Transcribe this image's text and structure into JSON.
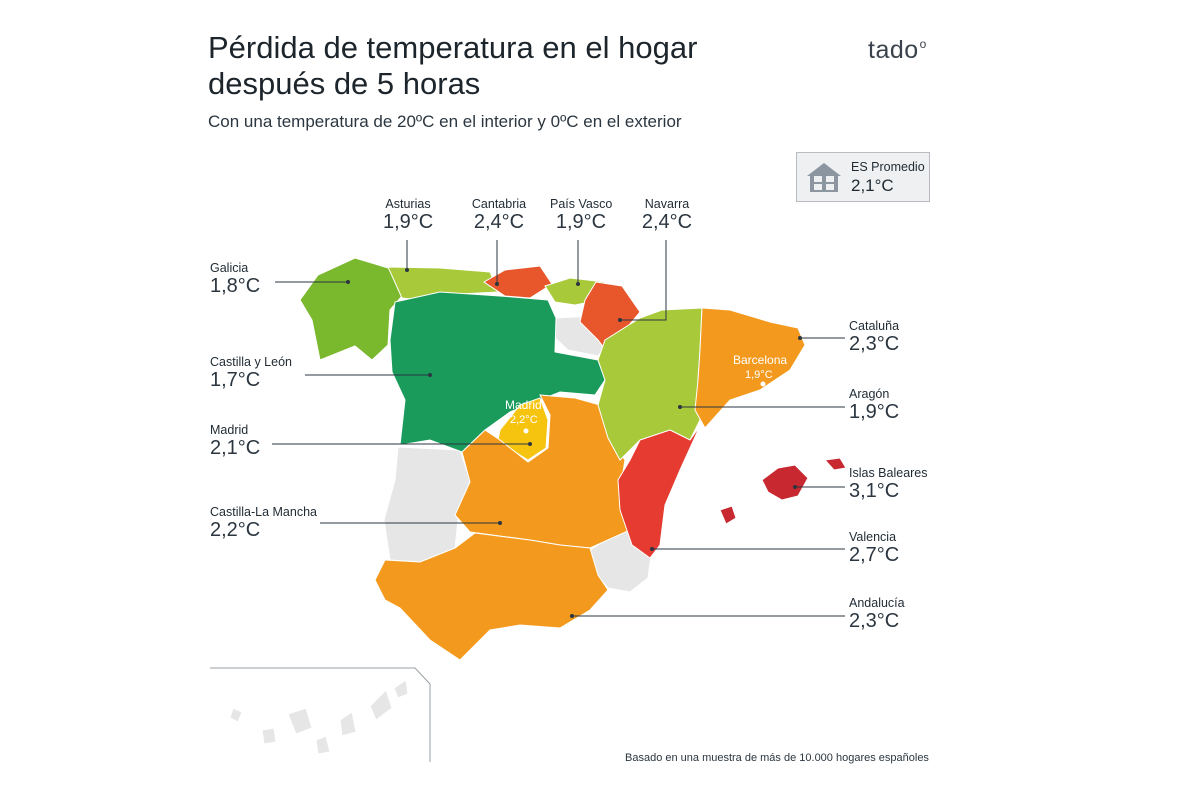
{
  "title_line1": "Pérdida de temperatura en el hogar",
  "title_line2": "después de 5 horas",
  "subtitle": "Con una temperatura de 20ºC en el interior y  0ºC en el exterior",
  "brand": "tado",
  "average": {
    "label": "ES Promedio",
    "value": "2,1°C",
    "icon": "house-icon"
  },
  "regions": [
    {
      "name": "Asturias",
      "value": "1,9°C",
      "color": "#a8c93a"
    },
    {
      "name": "Cantabria",
      "value": "2,4°C",
      "color": "#e8562c"
    },
    {
      "name": "País Vasco",
      "value": "1,9°C",
      "color": "#a8c93a"
    },
    {
      "name": "Navarra",
      "value": "2,4°C",
      "color": "#e8562c"
    },
    {
      "name": "Galicia",
      "value": "1,8°C",
      "color": "#7ab82e"
    },
    {
      "name": "Castilla y León",
      "value": "1,7°C",
      "color": "#1a9b5c"
    },
    {
      "name": "Madrid",
      "value": "2,1°C",
      "color": "#f6c40f"
    },
    {
      "name": "Castilla-La Mancha",
      "value": "2,2°C",
      "color": "#f39a1e"
    },
    {
      "name": "Cataluña",
      "value": "2,3°C",
      "color": "#f39a1e"
    },
    {
      "name": "Aragón",
      "value": "1,9°C",
      "color": "#a8c93a"
    },
    {
      "name": "Islas Baleares",
      "value": "3,1°C",
      "color": "#c8282f"
    },
    {
      "name": "Valencia",
      "value": "2,7°C",
      "color": "#e53b31"
    },
    {
      "name": "Andalucía",
      "value": "2,3°C",
      "color": "#f39a1e"
    }
  ],
  "cities": [
    {
      "name": "Barcelona",
      "value": "1,9°C"
    },
    {
      "name": "Madrid",
      "value": "2,2°C"
    }
  ],
  "no_data_color": "#e6e6e6",
  "footnote": "Basado en una muestra de más de 10.000 hogares españoles"
}
